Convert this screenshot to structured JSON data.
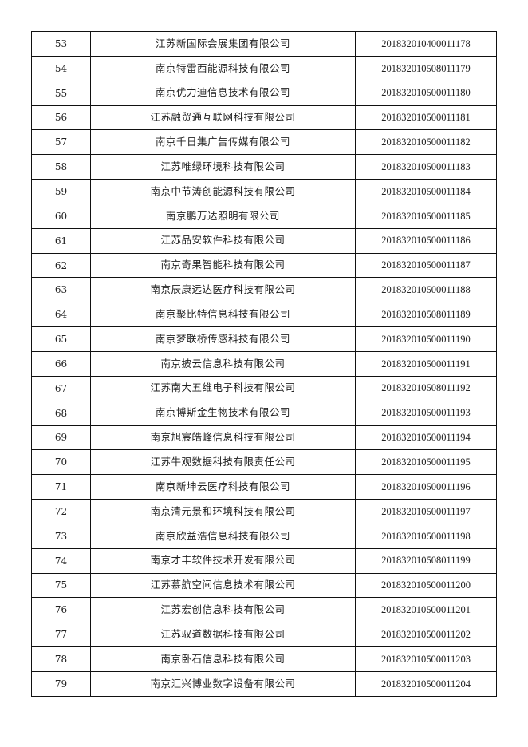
{
  "table": {
    "rows": [
      {
        "no": "53",
        "company": "江苏新国际会展集团有限公司",
        "code": "201832010400011178"
      },
      {
        "no": "54",
        "company": "南京特雷西能源科技有限公司",
        "code": "201832010508011179"
      },
      {
        "no": "55",
        "company": "南京优力迪信息技术有限公司",
        "code": "201832010500011180"
      },
      {
        "no": "56",
        "company": "江苏融贸通互联网科技有限公司",
        "code": "201832010500011181"
      },
      {
        "no": "57",
        "company": "南京千日集广告传媒有限公司",
        "code": "201832010500011182"
      },
      {
        "no": "58",
        "company": "江苏唯绿环境科技有限公司",
        "code": "201832010500011183"
      },
      {
        "no": "59",
        "company": "南京中节涛创能源科技有限公司",
        "code": "201832010500011184"
      },
      {
        "no": "60",
        "company": "南京鹏万达照明有限公司",
        "code": "201832010500011185"
      },
      {
        "no": "61",
        "company": "江苏品安软件科技有限公司",
        "code": "201832010500011186"
      },
      {
        "no": "62",
        "company": "南京奇果智能科技有限公司",
        "code": "201832010500011187"
      },
      {
        "no": "63",
        "company": "南京辰康远达医疗科技有限公司",
        "code": "201832010500011188"
      },
      {
        "no": "64",
        "company": "南京聚比特信息科技有限公司",
        "code": "201832010508011189"
      },
      {
        "no": "65",
        "company": "南京梦联桥传感科技有限公司",
        "code": "201832010500011190"
      },
      {
        "no": "66",
        "company": "南京披云信息科技有限公司",
        "code": "201832010500011191"
      },
      {
        "no": "67",
        "company": "江苏南大五维电子科技有限公司",
        "code": "201832010508011192"
      },
      {
        "no": "68",
        "company": "南京博斯金生物技术有限公司",
        "code": "201832010500011193"
      },
      {
        "no": "69",
        "company": "南京旭宸皓峰信息科技有限公司",
        "code": "201832010500011194"
      },
      {
        "no": "70",
        "company": "江苏牛观数据科技有限责任公司",
        "code": "201832010500011195"
      },
      {
        "no": "71",
        "company": "南京新坤云医疗科技有限公司",
        "code": "201832010500011196"
      },
      {
        "no": "72",
        "company": "南京清元景和环境科技有限公司",
        "code": "201832010500011197"
      },
      {
        "no": "73",
        "company": "南京欣益浩信息科技有限公司",
        "code": "201832010500011198"
      },
      {
        "no": "74",
        "company": "南京才丰软件技术开发有限公司",
        "code": "201832010508011199"
      },
      {
        "no": "75",
        "company": "江苏慕航空间信息技术有限公司",
        "code": "201832010500011200"
      },
      {
        "no": "76",
        "company": "江苏宏创信息科技有限公司",
        "code": "201832010500011201"
      },
      {
        "no": "77",
        "company": "江苏驭道数据科技有限公司",
        "code": "201832010500011202"
      },
      {
        "no": "78",
        "company": "南京卧石信息科技有限公司",
        "code": "201832010500011203"
      },
      {
        "no": "79",
        "company": "南京汇兴博业数字设备有限公司",
        "code": "201832010500011204"
      }
    ]
  }
}
